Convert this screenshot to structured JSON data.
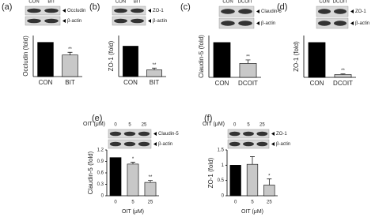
{
  "chart_data": [
    {
      "type": "bar",
      "panel_label": "(a)",
      "blot": {
        "lanes": [
          "CON",
          "BIT"
        ],
        "bands": [
          "Occludin",
          "β-actin"
        ]
      },
      "ylabel": "Occludin (fold)",
      "categories": [
        "CON",
        "BIT"
      ],
      "values": [
        1,
        0.63
      ],
      "errors": [
        null,
        0.08
      ],
      "annotations": [
        null,
        "**"
      ],
      "colors": [
        "#000000",
        "#c8c8c8"
      ],
      "ylim": [
        0,
        1.2
      ]
    },
    {
      "type": "bar",
      "panel_label": "(b)",
      "blot": {
        "lanes": [
          "CON",
          "BIT"
        ],
        "bands": [
          "ZO-1",
          "β-actin"
        ]
      },
      "ylabel": "ZO-1 (fold)",
      "categories": [
        "CON",
        "BIT"
      ],
      "values": [
        1,
        0.22
      ],
      "errors": [
        null,
        0.06
      ],
      "annotations": [
        null,
        "**"
      ],
      "colors": [
        "#000000",
        "#c8c8c8"
      ],
      "ylim": [
        0,
        1.35
      ]
    },
    {
      "type": "bar",
      "panel_label": "(c)",
      "blot": {
        "lanes": [
          "CON",
          "DCOIT"
        ],
        "bands": [
          "Claudin-5",
          "β-actin"
        ]
      },
      "ylabel": "Claudin-5 (fold)",
      "categories": [
        "CON",
        "DCOIT"
      ],
      "values": [
        1,
        0.4
      ],
      "errors": [
        null,
        0.1
      ],
      "annotations": [
        null,
        "**"
      ],
      "colors": [
        "#000000",
        "#c8c8c8"
      ],
      "ylim": [
        0,
        1.2
      ]
    },
    {
      "type": "bar",
      "panel_label": "(d)",
      "blot": {
        "lanes": [
          "CON",
          "DCOIT"
        ],
        "bands": [
          "ZO-1",
          "β-actin"
        ]
      },
      "ylabel": "ZO-1 (fold)",
      "categories": [
        "CON",
        "DCOIT"
      ],
      "values": [
        1,
        0.08
      ],
      "errors": [
        null,
        0.02
      ],
      "annotations": [
        null,
        "**"
      ],
      "colors": [
        "#000000",
        "#c8c8c8"
      ],
      "ylim": [
        0,
        1.2
      ]
    },
    {
      "type": "bar",
      "panel_label": "(e)",
      "blot": {
        "header": "OIT (μM)",
        "lanes": [
          "0",
          "5",
          "25"
        ],
        "bands": [
          "Claudin-5",
          "β-actin"
        ]
      },
      "ylabel": "Claudin-5 (fold)",
      "xlabel": "OIT (μM)",
      "categories": [
        "0",
        "5",
        "25"
      ],
      "values": [
        1,
        0.83,
        0.35
      ],
      "errors": [
        null,
        0.05,
        0.05
      ],
      "annotations": [
        null,
        "*",
        "**"
      ],
      "colors": [
        "#000000",
        "#c8c8c8",
        "#c8c8c8"
      ],
      "ylim": [
        0,
        1.2
      ],
      "yticks": [
        0,
        0.3,
        0.6,
        0.9,
        1.2
      ]
    },
    {
      "type": "bar",
      "panel_label": "(f)",
      "blot": {
        "header": "OIT (μM)",
        "lanes": [
          "0",
          "5",
          "25"
        ],
        "bands": [
          "ZO-1",
          "β-actin"
        ]
      },
      "ylabel": "ZO-1 (fold)",
      "xlabel": "OIT (μM)",
      "categories": [
        "0",
        "5",
        "25"
      ],
      "values": [
        1,
        1.03,
        0.35
      ],
      "errors": [
        null,
        0.25,
        0.2
      ],
      "annotations": [
        null,
        null,
        "*"
      ],
      "colors": [
        "#000000",
        "#c8c8c8",
        "#c8c8c8"
      ],
      "ylim": [
        0,
        1.5
      ],
      "yticks": [
        0,
        0.5,
        1,
        1.5
      ]
    }
  ]
}
